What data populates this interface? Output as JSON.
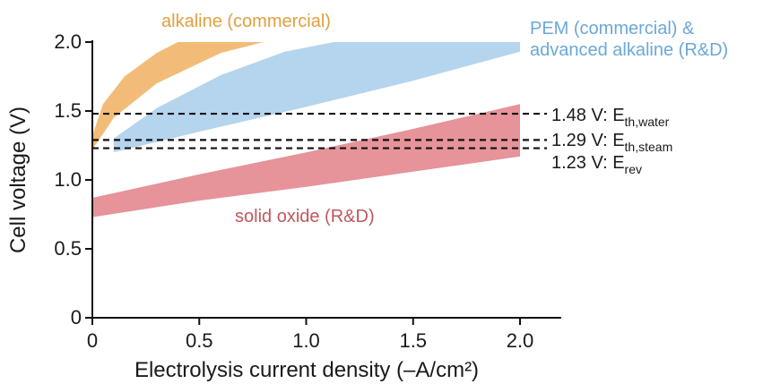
{
  "chart_data": {
    "type": "area",
    "xlabel": "Electrolysis current density (–A/cm²)",
    "ylabel": "Cell voltage (V)",
    "xlim": [
      0,
      2.1
    ],
    "ylim": [
      0,
      2.0
    ],
    "x_ticks": [
      0,
      0.5,
      1.0,
      1.5,
      2.0
    ],
    "x_tick_labels": [
      "0",
      "0.5",
      "1.0",
      "1.5",
      "2.0"
    ],
    "y_ticks": [
      0,
      0.5,
      1.0,
      1.5,
      2.0
    ],
    "y_tick_labels": [
      "0",
      "0.5",
      "1.0",
      "1.5",
      "2.0"
    ],
    "grid": false,
    "legend": "none",
    "bands": [
      {
        "name": "alkaline (commercial)",
        "color": "#f0b060",
        "label_color": "#e0a040",
        "upper": [
          [
            0,
            1.32
          ],
          [
            0.05,
            1.55
          ],
          [
            0.15,
            1.75
          ],
          [
            0.3,
            1.92
          ],
          [
            0.4,
            2.0
          ]
        ],
        "lower": [
          [
            0,
            1.22
          ],
          [
            0.1,
            1.45
          ],
          [
            0.3,
            1.7
          ],
          [
            0.6,
            1.92
          ],
          [
            0.8,
            2.0
          ]
        ]
      },
      {
        "name": "PEM (commercial) & advanced alkaline (R&D)",
        "color": "#a8cdea",
        "label_color": "#6aa8d8",
        "upper": [
          [
            0.1,
            1.3
          ],
          [
            0.3,
            1.52
          ],
          [
            0.6,
            1.76
          ],
          [
            0.9,
            1.93
          ],
          [
            1.13,
            2.0
          ],
          [
            2.0,
            2.0
          ]
        ],
        "lower": [
          [
            0.1,
            1.2
          ],
          [
            0.5,
            1.35
          ],
          [
            1.0,
            1.53
          ],
          [
            1.5,
            1.72
          ],
          [
            2.0,
            1.93
          ]
        ]
      },
      {
        "name": "solid oxide (R&D)",
        "color": "#e28088",
        "label_color": "#c0585e",
        "upper": [
          [
            0,
            0.87
          ],
          [
            0.5,
            1.04
          ],
          [
            1.0,
            1.2
          ],
          [
            1.5,
            1.37
          ],
          [
            2.0,
            1.55
          ]
        ],
        "lower": [
          [
            0,
            0.73
          ],
          [
            0.5,
            0.85
          ],
          [
            1.0,
            0.95
          ],
          [
            1.5,
            1.06
          ],
          [
            2.0,
            1.17
          ]
        ]
      }
    ],
    "reference_lines": [
      {
        "y": 1.48,
        "value": "1.48 V: E",
        "sub": "th,water"
      },
      {
        "y": 1.29,
        "value": "1.29 V: E",
        "sub": "th,steam"
      },
      {
        "y": 1.23,
        "value": "1.23 V: E",
        "sub": "rev"
      }
    ]
  }
}
